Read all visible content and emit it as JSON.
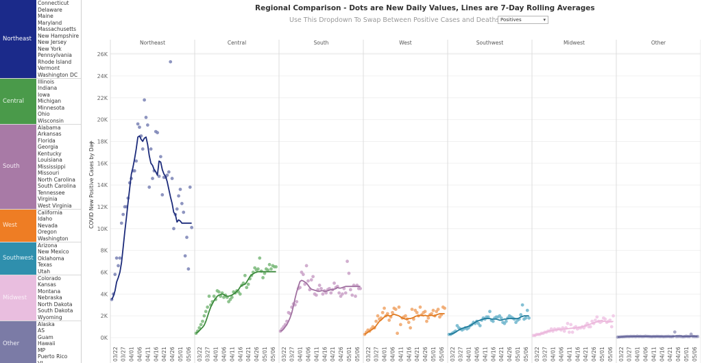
{
  "legend": {
    "groups": [
      {
        "name": "Northeast",
        "color": "#1b2a8a",
        "text_color": "#ffffff",
        "states": [
          "Connecticut",
          "Delaware",
          "Maine",
          "Maryland",
          "Massachusetts",
          "New Hampshire",
          "New Jersey",
          "New York",
          "Pennsylvania",
          "Rhode Island",
          "Vermont",
          "Washington DC"
        ]
      },
      {
        "name": "Central",
        "color": "#4a9a4a",
        "text_color": "#e8f5e8",
        "states": [
          "Illinois",
          "Indiana",
          "Iowa",
          "Michigan",
          "Minnesota",
          "Ohio",
          "Wisconsin"
        ]
      },
      {
        "name": "South",
        "color": "#a87aa6",
        "text_color": "#f5eaf5",
        "states": [
          "Alabama",
          "Arkansas",
          "Florida",
          "Georgia",
          "Kentucky",
          "Louisiana",
          "Mississippi",
          "Missouri",
          "North Carolina",
          "South Carolina",
          "Tennessee",
          "Virginia",
          "West Virginia"
        ]
      },
      {
        "name": "West",
        "color": "#ee7d24",
        "text_color": "#fde8d6",
        "states": [
          "California",
          "Idaho",
          "Nevada",
          "Oregon",
          "Washington"
        ]
      },
      {
        "name": "Southwest",
        "color": "#2f8fad",
        "text_color": "#e2f2f8",
        "states": [
          "Arizona",
          "New Mexico",
          "Oklahoma",
          "Texas",
          "Utah"
        ]
      },
      {
        "name": "Midwest",
        "color": "#e9bedf",
        "text_color": "#faf0f8",
        "states": [
          "Colorado",
          "Kansas",
          "Montana",
          "Nebraska",
          "North Dakota",
          "South Dakota",
          "Wyoming"
        ]
      },
      {
        "name": "Other",
        "color": "#7b7ba6",
        "text_color": "#eeeef6",
        "states": [
          "Alaska",
          "AS",
          "Guam",
          "Hawaii",
          "MP",
          "Puerto Rico",
          "VI"
        ]
      }
    ]
  },
  "header": {
    "title": "Regional Comparison - Dots are New Daily Values, Lines are 7-Day Rolling Averages",
    "subtitle": "Use This Dropdown To Swap Between Positive Cases and Deaths ->",
    "dropdown_value": "Positives",
    "dropdown_arrow_icon": "triangle-down"
  },
  "chart_data": {
    "type": "scatter",
    "title": "Regional Comparison - Dots are New Daily Values, Lines are 7-Day Rolling Averages",
    "ylabel": "COVID New Positive Cases by Day",
    "ylabel_icon": "sort-icon",
    "xlabel": "",
    "ylim": [
      0,
      27000
    ],
    "yticks": [
      0,
      2000,
      4000,
      6000,
      8000,
      10000,
      12000,
      14000,
      16000,
      18000,
      20000,
      22000,
      24000,
      26000
    ],
    "ytick_labels": [
      "0K",
      "2K",
      "4K",
      "6K",
      "8K",
      "10K",
      "12K",
      "14K",
      "16K",
      "18K",
      "20K",
      "22K",
      "24K",
      "26K"
    ],
    "x_day_range": [
      0,
      50
    ],
    "x_start_label": "03/20",
    "xticks_day": [
      2,
      7,
      12,
      17,
      22,
      27,
      32,
      37,
      42,
      47
    ],
    "xtick_labels": [
      "03/22",
      "03/27",
      "04/01",
      "04/06",
      "04/11",
      "04/16",
      "04/21",
      "04/26",
      "05/01",
      "05/06"
    ],
    "grid": true,
    "panels": [
      {
        "name": "Northeast",
        "dot_color": "#7a82b5",
        "line_color": "#1b2a7a",
        "dots": [
          3500,
          4000,
          5800,
          7300,
          6600,
          7300,
          10500,
          11300,
          12000,
          12000,
          12800,
          14200,
          14600,
          15300,
          15300,
          16200,
          19600,
          19300,
          18500,
          17300,
          21800,
          20200,
          19500,
          13800,
          17300,
          14600,
          15300,
          18900,
          18800,
          14800,
          16600,
          13100,
          14700,
          14700,
          14900,
          15200,
          25300,
          14600,
          10000,
          11300,
          11800,
          13000,
          13600,
          12300,
          11500,
          7500,
          9200,
          6300,
          13800,
          10100
        ],
        "line": [
          3500,
          3800,
          4300,
          5100,
          5500,
          6000,
          6900,
          8300,
          9700,
          11000,
          12400,
          13700,
          15000,
          15600,
          16400,
          17300,
          18400,
          18500,
          18200,
          18000,
          18300,
          18400,
          17700,
          16700,
          16000,
          15800,
          15400,
          15200,
          14900,
          16200,
          16100,
          15400,
          15000,
          14800,
          14300,
          13600,
          12900,
          12300,
          11500,
          11300,
          10600,
          10800,
          10700,
          10500,
          10500,
          10500,
          10500,
          10500,
          10500,
          10500
        ]
      },
      {
        "name": "Central",
        "dot_color": "#7ab87a",
        "line_color": "#3c8a3c",
        "dots": [
          400,
          600,
          900,
          1200,
          1500,
          2000,
          2400,
          2800,
          3800,
          3000,
          3300,
          3800,
          3500,
          4300,
          4200,
          3800,
          4100,
          3700,
          3900,
          3700,
          3300,
          3500,
          3700,
          4200,
          4100,
          4300,
          4200,
          4000,
          4800,
          5000,
          5700,
          4600,
          4900,
          5400,
          5700,
          6000,
          6400,
          6200,
          6300,
          7300,
          6100,
          5500,
          5900,
          6300,
          6200,
          6700,
          6300,
          6600,
          6500,
          6500
        ],
        "line": [
          400,
          500,
          650,
          800,
          950,
          1150,
          1500,
          1950,
          2400,
          2800,
          3100,
          3400,
          3600,
          3800,
          3900,
          3950,
          4000,
          3950,
          3850,
          3800,
          3800,
          3850,
          3900,
          4000,
          4100,
          4250,
          4400,
          4650,
          4800,
          4850,
          4900,
          5100,
          5350,
          5600,
          5750,
          5850,
          5950,
          6000,
          6050,
          6050,
          6050,
          6050,
          6050,
          6050,
          6050,
          6050,
          6050,
          6050,
          6050,
          6050
        ],
        "offset": 0
      },
      {
        "name": "South",
        "dot_color": "#c9a0c7",
        "line_color": "#a070a0",
        "dots": [
          600,
          800,
          1000,
          1200,
          1500,
          2300,
          2200,
          2800,
          3100,
          3000,
          3300,
          4500,
          4600,
          6000,
          5800,
          4900,
          6600,
          5200,
          4400,
          5300,
          5600,
          4000,
          3900,
          4400,
          4800,
          4500,
          4000,
          4300,
          4100,
          4400,
          4500,
          4100,
          4400,
          5000,
          4600,
          4700,
          4100,
          3800,
          4000,
          4500,
          4100,
          7000,
          5900,
          4400,
          3900,
          4800,
          3800,
          4800,
          4500,
          4500
        ],
        "line": [
          600,
          650,
          800,
          1000,
          1200,
          1500,
          1850,
          2300,
          2900,
          3600,
          4200,
          4700,
          5150,
          5250,
          5200,
          5100,
          5000,
          4800,
          4600,
          4450,
          4400,
          4350,
          4300,
          4250,
          4250,
          4300,
          4300,
          4250,
          4250,
          4300,
          4350,
          4400,
          4400,
          4450,
          4500,
          4600,
          4550,
          4550,
          4600,
          4650,
          4700,
          4700,
          4700,
          4700,
          4700,
          4700,
          4700,
          4700,
          4700,
          4700
        ]
      },
      {
        "name": "West",
        "dot_color": "#f0a467",
        "line_color": "#e07a20",
        "dots": [
          300,
          500,
          700,
          600,
          800,
          1000,
          900,
          1500,
          2000,
          1700,
          1800,
          2300,
          2700,
          2000,
          2200,
          1600,
          1900,
          2300,
          2700,
          2600,
          400,
          2800,
          1200,
          1800,
          1900,
          2000,
          1700,
          1400,
          900,
          2600,
          1700,
          2500,
          2300,
          2000,
          2800,
          2100,
          2300,
          2400,
          1500,
          1800,
          2100,
          2200,
          2500,
          2000,
          2400,
          2600,
          1900,
          2100,
          2800,
          2700
        ],
        "line": [
          300,
          400,
          500,
          600,
          700,
          800,
          900,
          1100,
          1300,
          1500,
          1600,
          1750,
          1900,
          2000,
          2050,
          2000,
          2000,
          2100,
          2150,
          2100,
          2050,
          2000,
          1900,
          1800,
          1750,
          1700,
          1700,
          1750,
          1750,
          1800,
          1850,
          1950,
          2000,
          2000,
          2050,
          2050,
          2000,
          2050,
          2000,
          2000,
          2050,
          2050,
          2000,
          2000,
          2100,
          2150,
          2200,
          2200,
          2200,
          2200
        ]
      },
      {
        "name": "Southwest",
        "dot_color": "#6fb5cc",
        "line_color": "#1f7a9a",
        "dots": [
          300,
          300,
          400,
          500,
          600,
          1100,
          900,
          800,
          700,
          800,
          900,
          800,
          900,
          1100,
          1200,
          1400,
          1300,
          1500,
          1300,
          1100,
          1600,
          1800,
          1700,
          1900,
          1900,
          2400,
          1600,
          1500,
          1800,
          1900,
          1900,
          2000,
          1800,
          1400,
          1300,
          1500,
          1800,
          2000,
          1900,
          1800,
          1700,
          1400,
          1600,
          1700,
          2100,
          3000,
          1700,
          1800,
          2500,
          1800
        ],
        "line": [
          300,
          330,
          360,
          420,
          500,
          600,
          700,
          780,
          850,
          900,
          950,
          1000,
          1050,
          1100,
          1200,
          1300,
          1400,
          1500,
          1550,
          1600,
          1650,
          1700,
          1750,
          1750,
          1750,
          1750,
          1700,
          1700,
          1700,
          1700,
          1650,
          1600,
          1600,
          1650,
          1700,
          1700,
          1750,
          1750,
          1750,
          1750,
          1750,
          1750,
          1750,
          1800,
          1900,
          1950,
          2000,
          2000,
          2000,
          2000
        ]
      },
      {
        "name": "Midwest",
        "dot_color": "#f0c6e5",
        "line_color": "#ebb6da",
        "dots": [
          200,
          200,
          300,
          300,
          300,
          400,
          400,
          500,
          500,
          600,
          600,
          800,
          600,
          800,
          700,
          800,
          800,
          700,
          900,
          600,
          900,
          1300,
          500,
          1200,
          500,
          900,
          1000,
          800,
          900,
          900,
          1000,
          900,
          1100,
          1300,
          1000,
          1000,
          1500,
          1300,
          1600,
          1900,
          1500,
          1400,
          1500,
          1800,
          1700,
          1400,
          1500,
          1600,
          1000,
          2000
        ],
        "line": [
          200,
          220,
          250,
          280,
          320,
          380,
          430,
          480,
          530,
          580,
          620,
          650,
          680,
          700,
          720,
          740,
          760,
          770,
          780,
          790,
          800,
          820,
          840,
          860,
          870,
          880,
          900,
          920,
          940,
          970,
          1000,
          1050,
          1100,
          1150,
          1200,
          1250,
          1300,
          1350,
          1400,
          1450,
          1500,
          1550,
          1550,
          1500,
          1500,
          1450,
          1450,
          1450,
          1450,
          1500
        ]
      },
      {
        "name": "Other",
        "dot_color": "#9c9cc0",
        "line_color": "#5f5f96",
        "dots": [
          50,
          60,
          80,
          80,
          90,
          100,
          110,
          100,
          120,
          110,
          120,
          100,
          130,
          110,
          120,
          100,
          110,
          130,
          120,
          110,
          100,
          90,
          110,
          100,
          120,
          110,
          100,
          110,
          90,
          100,
          110,
          120,
          100,
          90,
          110,
          520,
          100,
          110,
          120,
          100,
          80,
          100,
          130,
          110,
          100,
          320,
          110,
          100,
          100,
          110
        ],
        "line": [
          50,
          60,
          70,
          80,
          90,
          95,
          100,
          100,
          105,
          105,
          110,
          110,
          110,
          110,
          110,
          110,
          110,
          110,
          110,
          110,
          105,
          105,
          105,
          105,
          105,
          105,
          105,
          105,
          100,
          100,
          100,
          100,
          100,
          100,
          110,
          150,
          150,
          150,
          150,
          150,
          110,
          110,
          110,
          110,
          110,
          140,
          140,
          140,
          110,
          110
        ]
      }
    ]
  }
}
